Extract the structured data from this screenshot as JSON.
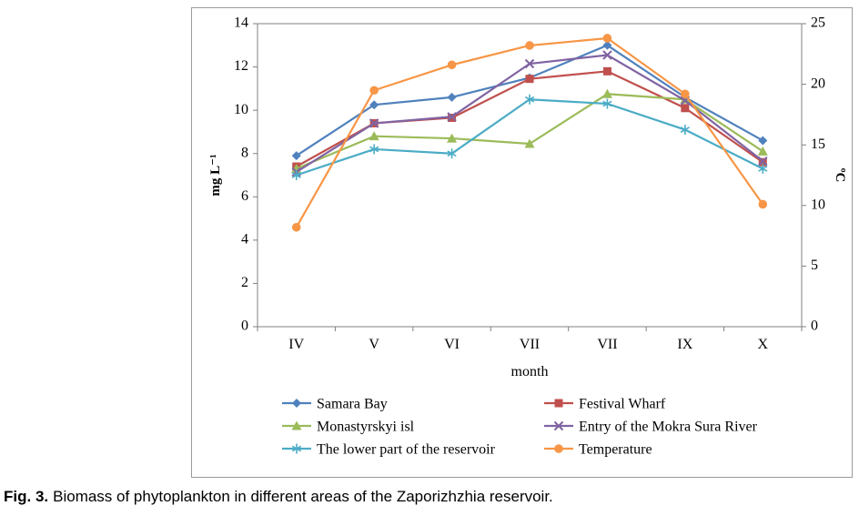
{
  "page": {
    "caption_prefix": "Fig. 3.",
    "caption_text": "Biomass of phytoplankton in different areas of the Zaporizhzhia reservoir."
  },
  "chart_data": {
    "type": "line",
    "title": "",
    "xlabel": "month",
    "ylabel_left": "mg L⁻¹",
    "ylabel_right": "ºC",
    "categories": [
      "IV",
      "V",
      "VI",
      "VII",
      "VII",
      "IX",
      "X"
    ],
    "left_axis": {
      "min": 0,
      "max": 14,
      "ticks": [
        0,
        2,
        4,
        6,
        8,
        10,
        12,
        14
      ]
    },
    "right_axis": {
      "min": 0,
      "max": 25,
      "ticks": [
        0,
        5,
        10,
        15,
        20,
        25
      ]
    },
    "grid": false,
    "legend_position": "bottom",
    "legend_rows": [
      [
        0,
        1
      ],
      [
        2,
        3
      ],
      [
        4,
        5
      ]
    ],
    "axis_color": "#808080",
    "series": [
      {
        "name": "Samara Bay",
        "axis": "left",
        "color": "#4F81BD",
        "marker": "diamond",
        "values": [
          7.9,
          10.25,
          10.6,
          11.5,
          13.0,
          10.6,
          8.6
        ]
      },
      {
        "name": "Festival Wharf",
        "axis": "left",
        "color": "#C0504D",
        "marker": "square",
        "values": [
          7.4,
          9.4,
          9.65,
          11.45,
          11.8,
          10.1,
          7.6
        ]
      },
      {
        "name": "Monastyrskyi isl",
        "axis": "left",
        "color": "#9BBB59",
        "marker": "triangle",
        "values": [
          7.3,
          8.8,
          8.7,
          8.45,
          10.75,
          10.5,
          8.1
        ]
      },
      {
        "name": "Entry of the Mokra Sura River",
        "axis": "left",
        "color": "#8064A2",
        "marker": "x",
        "values": [
          7.15,
          9.4,
          9.7,
          12.15,
          12.55,
          10.45,
          7.65
        ]
      },
      {
        "name": "The lower part of the reservoir",
        "axis": "left",
        "color": "#4BACC6",
        "marker": "asterisk",
        "values": [
          7.0,
          8.2,
          8.0,
          10.5,
          10.3,
          9.1,
          7.3
        ]
      },
      {
        "name": "Temperature",
        "axis": "right",
        "color": "#F79646",
        "marker": "circle",
        "values": [
          8.2,
          19.5,
          21.6,
          23.2,
          23.8,
          19.2,
          10.1
        ]
      }
    ]
  }
}
